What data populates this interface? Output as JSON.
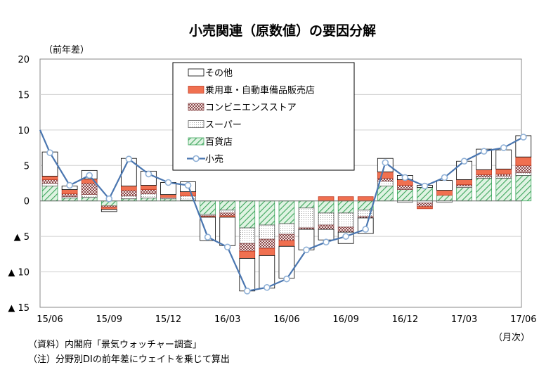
{
  "chart_data": {
    "type": "bar",
    "title": "小売関連（原数値）の要因分解",
    "ylabel": "（前年差）",
    "xunit": "（月次）",
    "ylim": [
      -15,
      20
    ],
    "yticks": [
      {
        "value": 20,
        "label": "20"
      },
      {
        "value": 15,
        "label": "15"
      },
      {
        "value": 10,
        "label": "10"
      },
      {
        "value": 5,
        "label": "5"
      },
      {
        "value": 0,
        "label": "0"
      },
      {
        "value": -5,
        "label": "▲ 5"
      },
      {
        "value": -10,
        "label": "▲ 10"
      },
      {
        "value": -15,
        "label": "▲ 15"
      }
    ],
    "categories": [
      "15/06",
      "15/07",
      "15/08",
      "15/09",
      "15/10",
      "15/11",
      "15/12",
      "16/01",
      "16/02",
      "16/03",
      "16/04",
      "16/05",
      "16/06",
      "16/07",
      "16/08",
      "16/09",
      "16/10",
      "16/11",
      "16/12",
      "17/01",
      "17/02",
      "17/03",
      "17/04",
      "17/05",
      "17/06"
    ],
    "xtick_labels": [
      "15/06",
      "15/09",
      "15/12",
      "16/03",
      "16/06",
      "16/09",
      "16/12",
      "17/03",
      "17/06"
    ],
    "legend_position": "top-center",
    "series": [
      {
        "name": "百貨店",
        "kind": "bar",
        "fill": "#bfe8c4",
        "stroke": "#3aa45a",
        "values": [
          2.1,
          0.4,
          0.5,
          -0.7,
          0.3,
          0.4,
          0.3,
          0.1,
          -1.9,
          -1.3,
          -3.8,
          -3.4,
          -3.2,
          -1.0,
          -1.7,
          -1.7,
          -1.3,
          2.1,
          1.6,
          1.9,
          0.8,
          1.9,
          3.2,
          3.2,
          3.6
        ]
      },
      {
        "name": "スーパー",
        "kind": "bar",
        "fill": "#ffffff",
        "stroke": "#000000",
        "values": [
          0.4,
          0.2,
          0.4,
          0.0,
          0.4,
          0.6,
          0.2,
          0.6,
          -0.2,
          -0.4,
          -2.2,
          -2.0,
          -1.5,
          -2.8,
          -1.7,
          -2.0,
          -0.9,
          0.7,
          -0.2,
          -0.3,
          -0.2,
          0.2,
          0.2,
          0.3,
          0.4
        ]
      },
      {
        "name": "コンビニエンスストア",
        "kind": "bar",
        "fill": "#e9c9c9",
        "stroke": "#8a4a4a",
        "values": [
          0.5,
          0.4,
          1.6,
          -0.2,
          0.8,
          0.6,
          0.0,
          0.0,
          -0.1,
          -0.4,
          -1.1,
          -1.3,
          -0.9,
          -0.2,
          -0.6,
          -0.7,
          -0.2,
          0.4,
          0.6,
          -0.5,
          0.0,
          0.2,
          0.3,
          0.3,
          1.0
        ]
      },
      {
        "name": "乗用車・自動車備品販売店",
        "kind": "bar",
        "fill": "#f07050",
        "stroke": "#c03c24",
        "values": [
          0.5,
          0.6,
          0.6,
          -0.3,
          0.6,
          0.6,
          0.4,
          0.6,
          -0.1,
          -0.2,
          -1.0,
          -1.0,
          -0.8,
          0.0,
          0.6,
          0.6,
          0.6,
          0.9,
          0.8,
          -0.3,
          0.7,
          0.7,
          0.7,
          0.7,
          1.2
        ]
      },
      {
        "name": "その他",
        "kind": "bar",
        "fill": "#ffffff",
        "stroke": "#000000",
        "values": [
          3.4,
          0.5,
          1.2,
          -0.3,
          3.9,
          2.0,
          1.7,
          1.4,
          -3.3,
          -4.0,
          -4.6,
          -4.6,
          -4.5,
          -2.9,
          -1.5,
          -1.6,
          -2.2,
          1.9,
          0.6,
          0.3,
          1.4,
          2.6,
          2.9,
          2.7,
          3.0
        ]
      },
      {
        "name": "小売",
        "kind": "line",
        "color": "#4a76b0",
        "values": [
          6.8,
          2.2,
          3.6,
          0.3,
          5.9,
          3.8,
          2.6,
          2.2,
          -5.1,
          -6.5,
          -12.7,
          -12.2,
          -11.0,
          -6.9,
          -5.8,
          -5.0,
          -4.0,
          5.4,
          3.3,
          2.1,
          3.3,
          5.6,
          7.0,
          7.5,
          9.0
        ]
      }
    ],
    "line_start_value": 10.0
  },
  "notes": {
    "source": "（資料）内閣府「景気ウォッチャー調査」",
    "note": "（注）分野別DIの前年差にウェイトを乗じて算出"
  }
}
